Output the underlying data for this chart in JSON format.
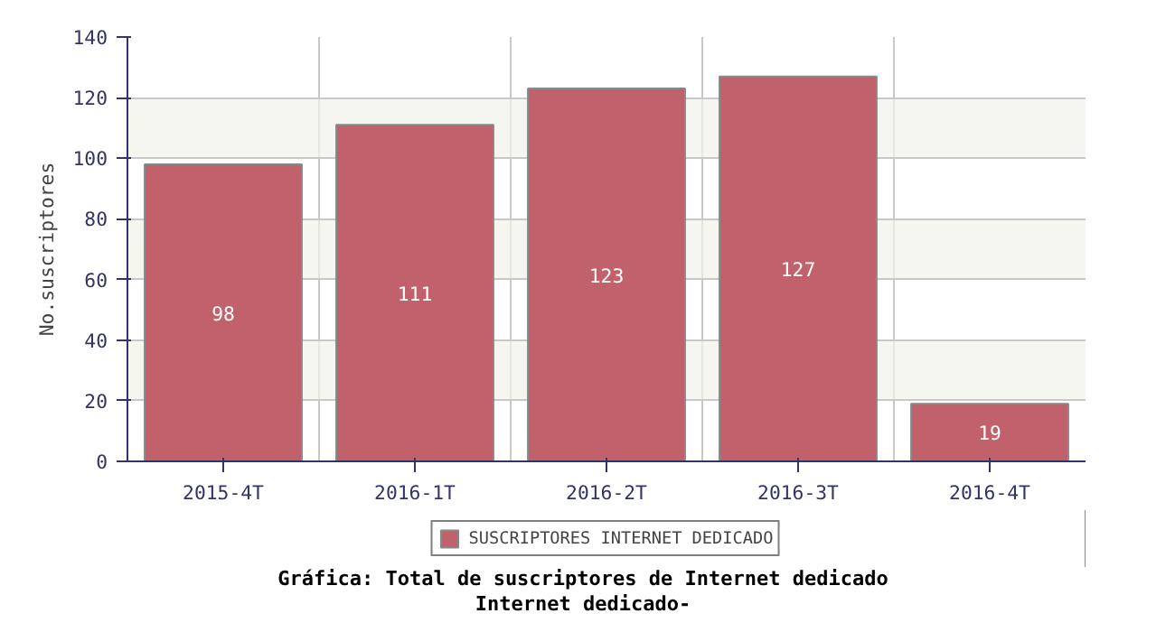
{
  "chart_data": {
    "type": "bar",
    "title": "Gráfica: Total de suscriptores de Internet dedicado",
    "subtitle": "Internet dedicado-",
    "ylabel": "No.suscriptores",
    "categories": [
      "2015-4T",
      "2016-1T",
      "2016-2T",
      "2016-3T",
      "2016-4T"
    ],
    "series": [
      {
        "name": "SUSCRIPTORES INTERNET DEDICADO",
        "color": "#c0616b",
        "values": [
          98,
          111,
          123,
          127,
          19
        ]
      }
    ],
    "ylim": [
      0,
      140
    ],
    "yticks": [
      0,
      20,
      40,
      60,
      80,
      100,
      120,
      140
    ],
    "grid": true,
    "legend": "bottom",
    "data_labels": true
  }
}
